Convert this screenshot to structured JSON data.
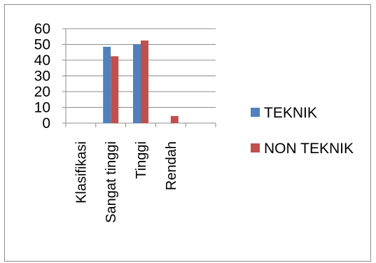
{
  "chart_data": {
    "type": "bar",
    "categories": [
      "Klasifikasi",
      "Sangat tinggi",
      "Tinggi",
      "Rendah",
      ""
    ],
    "series": [
      {
        "name": "TEKNIK",
        "values": [
          null,
          48.5,
          50,
          null,
          null
        ]
      },
      {
        "name": "NON TEKNIK",
        "values": [
          null,
          42.5,
          52.5,
          4.5,
          null
        ]
      }
    ],
    "ylim": [
      0,
      60
    ],
    "yticks": [
      0,
      10,
      20,
      30,
      40,
      50,
      60
    ],
    "grid": true,
    "legend_position": "right",
    "colors": {
      "TEKNIK": "#4f81bd",
      "NON TEKNIK": "#c0504d"
    }
  }
}
